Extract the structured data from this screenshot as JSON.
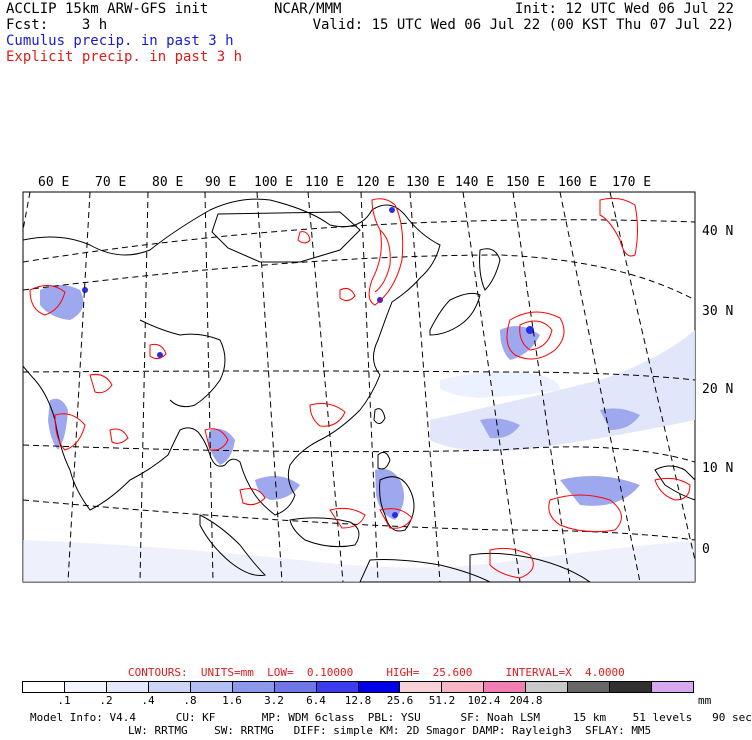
{
  "header": {
    "line1_left": "ACCLIP 15km ARW-GFS init",
    "line1_center": "NCAR/MMM",
    "line1_right": "Init: 12 UTC Wed 06 Jul 22",
    "line2_left_label": "Fcst:",
    "line2_left_value": "3 h",
    "line2_right": "Valid: 15 UTC Wed 06 Jul 22 (00 KST Thu 07 Jul 22)",
    "cumulus_label": "Cumulus precip. in past 3 h",
    "explicit_label": "Explicit precip. in past 3 h"
  },
  "map": {
    "longitude_labels": [
      "60 E",
      "70 E",
      "80 E",
      "90 E",
      "100 E",
      "110 E",
      "120 E",
      "130 E",
      "140 E",
      "150 E",
      "160 E",
      "170 E"
    ],
    "latitude_labels": [
      "40 N",
      "30 N",
      "20 N",
      "10 N",
      "0"
    ],
    "colors": {
      "cumulus": "#3a3ae0",
      "explicit": "#ff0000",
      "coast": "#000000",
      "grid": "#000000"
    }
  },
  "contours": {
    "label": "CONTOURS:",
    "units": "UNITS=mm",
    "low": "LOW=  0.10000",
    "high": "HIGH=  25.600",
    "interval": "INTERVAL=X  4.0000"
  },
  "colorbar": {
    "colors": [
      "#ffffff",
      "#f2f4ff",
      "#e3e8fb",
      "#ccd5f6",
      "#b3bff2",
      "#8c98ea",
      "#6e77e8",
      "#3b3bf0",
      "#0000e6",
      "#f7d2d8",
      "#f6b6c7",
      "#f07fb3",
      "#c8c8c8",
      "#666666",
      "#303030",
      "#d7a8ef"
    ],
    "ticks": [
      ".1",
      ".2",
      ".4",
      ".8",
      "1.6",
      "3.2",
      "6.4",
      "12.8",
      "25.6",
      "51.2",
      "102.4",
      "204.8"
    ],
    "unit": "mm"
  },
  "model_info": {
    "line1": "Model Info: V4.4      CU: KF       MP: WDM 6class  PBL: YSU      SF: Noah LSM     15 km    51 levels   90 sec",
    "line2": "LW: RRTMG    SW: RRTMG   DIFF: simple KM: 2D Smagor DAMP: Rayleigh3  SFLAY: MM5"
  }
}
